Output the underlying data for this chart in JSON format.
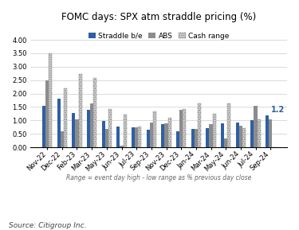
{
  "title": "FOMC days: SPX atm straddle pricing (%)",
  "categories": [
    "Nov-22",
    "Dec-22",
    "Feb-23",
    "Mar-23",
    "May-23",
    "Jun-23",
    "Jul-23",
    "Sep-23",
    "Nov-23",
    "Dec-23",
    "Jan-24",
    "Mar-24",
    "May-24",
    "Jun-24",
    "Jul-24",
    "Sep-24"
  ],
  "straddle": [
    1.55,
    1.8,
    1.28,
    1.38,
    0.97,
    0.78,
    0.73,
    0.65,
    0.87,
    0.58,
    0.68,
    0.72,
    0.88,
    0.93,
    1.02,
    1.2
  ],
  "abs": [
    2.5,
    0.6,
    1.03,
    1.63,
    0.68,
    0.05,
    0.75,
    0.92,
    0.88,
    1.38,
    0.68,
    0.85,
    0.33,
    0.8,
    1.55,
    1.05
  ],
  "cash_range": [
    3.5,
    2.18,
    2.73,
    2.58,
    1.43,
    1.22,
    0.77,
    1.32,
    1.1,
    1.42,
    1.62,
    1.25,
    1.63,
    0.7,
    1.05,
    0.0
  ],
  "straddle_color": "#2e5fa3",
  "abs_color": "#8c8c8c",
  "cash_range_facecolor": "#d8d8d8",
  "cash_range_edgecolor": "#888888",
  "ylim_max": 4.0,
  "ytick_step": 0.5,
  "xlabel_note": "Range = event day high - low range as % previous day close",
  "source": "Source: Citigroup Inc.",
  "annotation_val": "1.2",
  "annotation_idx": 15,
  "legend_labels": [
    "Straddle b/e",
    "ABS",
    "Cash range"
  ],
  "title_fontsize": 8.5,
  "tick_fontsize": 6,
  "legend_fontsize": 6.5,
  "note_fontsize": 5.5,
  "source_fontsize": 6.5,
  "bar_width": 0.22
}
